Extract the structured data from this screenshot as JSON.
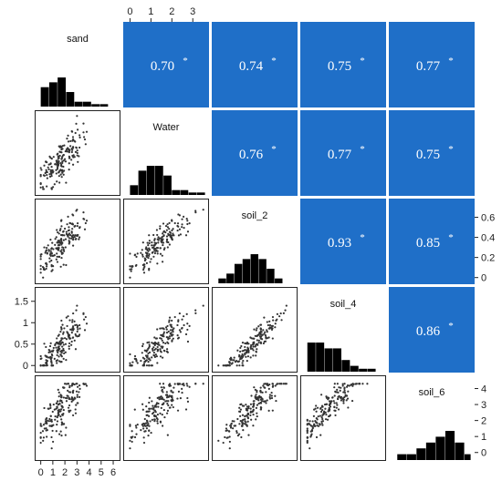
{
  "chart_data": {
    "type": "scatter",
    "subtype": "scatterplot-matrix",
    "variables": [
      "sand",
      "Water",
      "soil_2",
      "soil_4",
      "soil_6"
    ],
    "axes": [
      {
        "variable": "sand",
        "range": [
          -0.2,
          6.3
        ],
        "ticks": [
          0,
          1,
          2,
          3,
          4,
          5,
          6
        ],
        "printed_side": "bottom"
      },
      {
        "variable": "Water",
        "range": [
          -0.15,
          3.6
        ],
        "ticks": [
          0,
          1,
          2,
          3
        ],
        "printed_side": "top"
      },
      {
        "variable": "soil_2",
        "range": [
          -0.03,
          0.75
        ],
        "ticks": [
          0,
          0.2,
          0.4,
          0.6
        ],
        "printed_side": "right"
      },
      {
        "variable": "soil_4",
        "range": [
          -0.08,
          1.75
        ],
        "ticks": [
          0,
          0.5,
          1,
          1.5
        ],
        "printed_side": "left"
      },
      {
        "variable": "soil_6",
        "range": [
          -0.3,
          4.6
        ],
        "ticks": [
          0,
          1,
          2,
          3,
          4
        ],
        "printed_side": "right"
      }
    ],
    "histograms": [
      {
        "variable": "sand",
        "bins": [
          0,
          0.7,
          1.4,
          2.1,
          2.8,
          3.5,
          4.2,
          4.9,
          5.6
        ],
        "counts": [
          4,
          5,
          6,
          3,
          1,
          1,
          0.5,
          0.5
        ],
        "color": "#000000"
      },
      {
        "variable": "Water",
        "bins": [
          0,
          0.4,
          0.8,
          1.2,
          1.6,
          2.0,
          2.4,
          2.8,
          3.2,
          3.6
        ],
        "counts": [
          2,
          5,
          6,
          6,
          4,
          1,
          1,
          0.5,
          0.5
        ],
        "color": "#000000"
      },
      {
        "variable": "soil_2",
        "bins": [
          0,
          0.08,
          0.16,
          0.24,
          0.32,
          0.4,
          0.48,
          0.56,
          0.64
        ],
        "counts": [
          1,
          2,
          4,
          5,
          6,
          5,
          3,
          1
        ],
        "color": "#000000"
      },
      {
        "variable": "soil_4",
        "bins": [
          0,
          0.2,
          0.4,
          0.6,
          0.8,
          1.0,
          1.2,
          1.4,
          1.6
        ],
        "counts": [
          5,
          5,
          4,
          4,
          2,
          1,
          0.5,
          0.5
        ],
        "color": "#000000"
      },
      {
        "variable": "soil_6",
        "bins": [
          0,
          0.6,
          1.2,
          1.8,
          2.4,
          3.0,
          3.6,
          4.2,
          4.6
        ],
        "counts": [
          1,
          1,
          2,
          3,
          4,
          5,
          3,
          1
        ],
        "color": "#000000"
      }
    ],
    "correlations": [
      {
        "pair": [
          "sand",
          "Water"
        ],
        "r": "0.70",
        "sig": "*"
      },
      {
        "pair": [
          "sand",
          "soil_2"
        ],
        "r": "0.74",
        "sig": "*"
      },
      {
        "pair": [
          "sand",
          "soil_4"
        ],
        "r": "0.75",
        "sig": "*"
      },
      {
        "pair": [
          "sand",
          "soil_6"
        ],
        "r": "0.77",
        "sig": "*"
      },
      {
        "pair": [
          "Water",
          "soil_2"
        ],
        "r": "0.76",
        "sig": "*"
      },
      {
        "pair": [
          "Water",
          "soil_4"
        ],
        "r": "0.77",
        "sig": "*"
      },
      {
        "pair": [
          "Water",
          "soil_6"
        ],
        "r": "0.75",
        "sig": "*"
      },
      {
        "pair": [
          "soil_2",
          "soil_4"
        ],
        "r": "0.93",
        "sig": "*"
      },
      {
        "pair": [
          "soil_2",
          "soil_6"
        ],
        "r": "0.85",
        "sig": "*"
      },
      {
        "pair": [
          "soil_4",
          "soil_6"
        ],
        "r": "0.86",
        "sig": "*"
      }
    ],
    "scatter_points_per_panel": 180,
    "correlation_cell_color": "#1f6fc8",
    "point_color": "#333333",
    "grid": false,
    "legend": "none"
  }
}
